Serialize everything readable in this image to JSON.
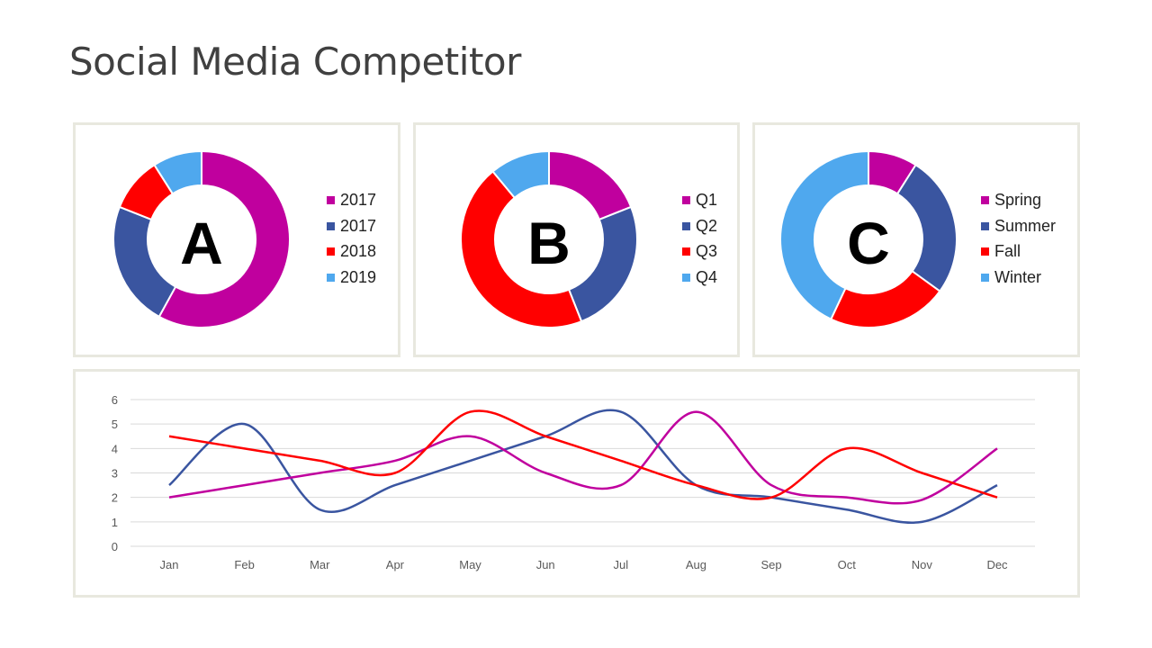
{
  "title": "Social Media Competitor",
  "colors": [
    "#c0009e",
    "#3a55a0",
    "#ff0000",
    "#4fa8ee"
  ],
  "chart_data": [
    {
      "type": "pie",
      "donut": true,
      "center_label": "A",
      "categories": [
        "2017",
        "2017",
        "2018",
        "2019"
      ],
      "values": [
        58,
        23,
        10,
        9
      ],
      "legend": "right"
    },
    {
      "type": "pie",
      "donut": true,
      "center_label": "B",
      "categories": [
        "Q1",
        "Q2",
        "Q3",
        "Q4"
      ],
      "values": [
        19,
        25,
        45,
        11
      ],
      "legend": "right"
    },
    {
      "type": "pie",
      "donut": true,
      "center_label": "C",
      "categories": [
        "Spring",
        "Summer",
        "Fall",
        "Winter"
      ],
      "values": [
        9,
        26,
        22,
        43
      ],
      "legend": "right"
    },
    {
      "type": "line",
      "smooth": true,
      "grid": true,
      "ylim": [
        0,
        6
      ],
      "yticks": [
        "0",
        "1",
        "2",
        "3",
        "4",
        "5",
        "6"
      ],
      "categories": [
        "Jan",
        "Feb",
        "Mar",
        "Apr",
        "May",
        "Jun",
        "Jul",
        "Aug",
        "Sep",
        "Oct",
        "Nov",
        "Dec"
      ],
      "series": [
        {
          "color": "#3a55a0",
          "values": [
            2.5,
            5,
            1.5,
            2.5,
            3.5,
            4.5,
            5.5,
            2.5,
            2,
            1.5,
            1,
            2.5
          ]
        },
        {
          "color": "#c0009e",
          "values": [
            2,
            2.5,
            3,
            3.5,
            4.5,
            3,
            2.5,
            5.5,
            2.5,
            2,
            1.9,
            4
          ]
        },
        {
          "color": "#ff0000",
          "values": [
            4.5,
            4,
            3.5,
            3,
            5.5,
            4.5,
            3.5,
            2.5,
            2,
            4,
            3,
            2
          ]
        }
      ]
    }
  ]
}
